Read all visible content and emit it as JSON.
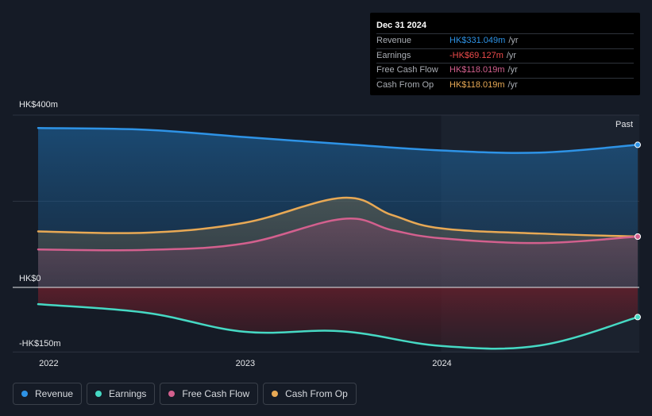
{
  "tooltip": {
    "date": "Dec 31 2024",
    "rows": [
      {
        "label": "Revenue",
        "value": "HK$331.049m",
        "unit": "/yr",
        "color": "#2e93e6"
      },
      {
        "label": "Earnings",
        "value": "-HK$69.127m",
        "unit": "/yr",
        "color": "#ee4b4b"
      },
      {
        "label": "Free Cash Flow",
        "value": "HK$118.019m",
        "unit": "/yr",
        "color": "#d3608e"
      },
      {
        "label": "Cash From Op",
        "value": "HK$118.019m",
        "unit": "/yr",
        "color": "#e8a955"
      }
    ]
  },
  "past_label": "Past",
  "legend": [
    {
      "label": "Revenue",
      "color": "#2e93e6"
    },
    {
      "label": "Earnings",
      "color": "#46d9c4"
    },
    {
      "label": "Free Cash Flow",
      "color": "#d3608e"
    },
    {
      "label": "Cash From Op",
      "color": "#e8a955"
    }
  ],
  "chart_data": {
    "type": "area",
    "y_tick_labels": [
      "HK$400m",
      "HK$0",
      "-HK$150m"
    ],
    "y_ticks": [
      400,
      0,
      -150
    ],
    "ylim": [
      -150,
      400
    ],
    "xlim": [
      2021.95,
      2025.0
    ],
    "x_tick_labels": [
      "2022",
      "2023",
      "2024"
    ],
    "x_ticks": [
      2022,
      2023,
      2024
    ],
    "past_region_start": 2024.0,
    "series": [
      {
        "name": "Revenue",
        "color": "#2e93e6",
        "x": [
          2021.95,
          2022.5,
          2023.0,
          2023.5,
          2024.0,
          2024.5,
          2025.0
        ],
        "values": [
          370,
          366,
          349,
          333,
          318,
          313,
          331
        ]
      },
      {
        "name": "Cash From Op",
        "color": "#e8a955",
        "x": [
          2021.95,
          2022.5,
          2023.0,
          2023.5,
          2023.75,
          2024.0,
          2024.5,
          2025.0
        ],
        "values": [
          130,
          127,
          150,
          208,
          168,
          137,
          125,
          118
        ]
      },
      {
        "name": "Free Cash Flow",
        "color": "#d3608e",
        "x": [
          2021.95,
          2022.5,
          2023.0,
          2023.5,
          2023.75,
          2024.0,
          2024.5,
          2025.0
        ],
        "values": [
          88,
          87,
          102,
          159,
          133,
          114,
          103,
          118
        ]
      },
      {
        "name": "Earnings",
        "color": "#46d9c4",
        "x": [
          2021.95,
          2022.5,
          2023.0,
          2023.5,
          2024.0,
          2024.5,
          2025.0
        ],
        "values": [
          -39,
          -59,
          -103,
          -102,
          -136,
          -135,
          -69
        ]
      }
    ]
  }
}
